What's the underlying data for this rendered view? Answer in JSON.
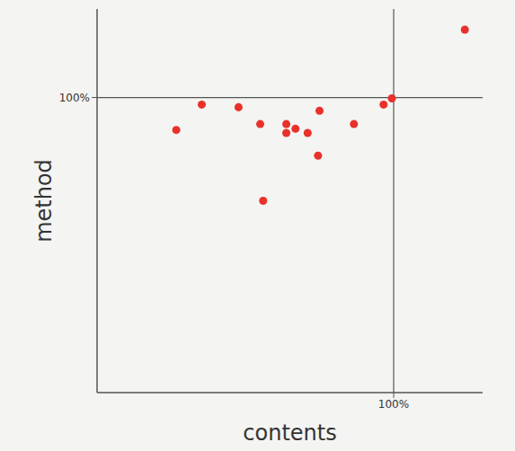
{
  "chart_data": {
    "type": "scatter",
    "x_label": "contents",
    "y_label": "method",
    "x": [
      26.7,
      35.3,
      47.7,
      55,
      56,
      63.8,
      63.8,
      66.9,
      71,
      75,
      74.5,
      86.6,
      96.6,
      99.4,
      124
    ],
    "values": [
      89,
      97.6,
      96.7,
      91,
      65,
      91,
      88,
      89.4,
      88,
      95.5,
      80.3,
      91,
      97.6,
      99.7,
      123
    ],
    "color": "#e8312a",
    "marker": "circle",
    "xlim": [
      0,
      130
    ],
    "ylim": [
      0,
      130
    ],
    "xticks": [
      {
        "value": 100,
        "label": "100%"
      }
    ],
    "yticks": [
      {
        "value": 100,
        "label": "100%"
      }
    ],
    "grid": true
  }
}
